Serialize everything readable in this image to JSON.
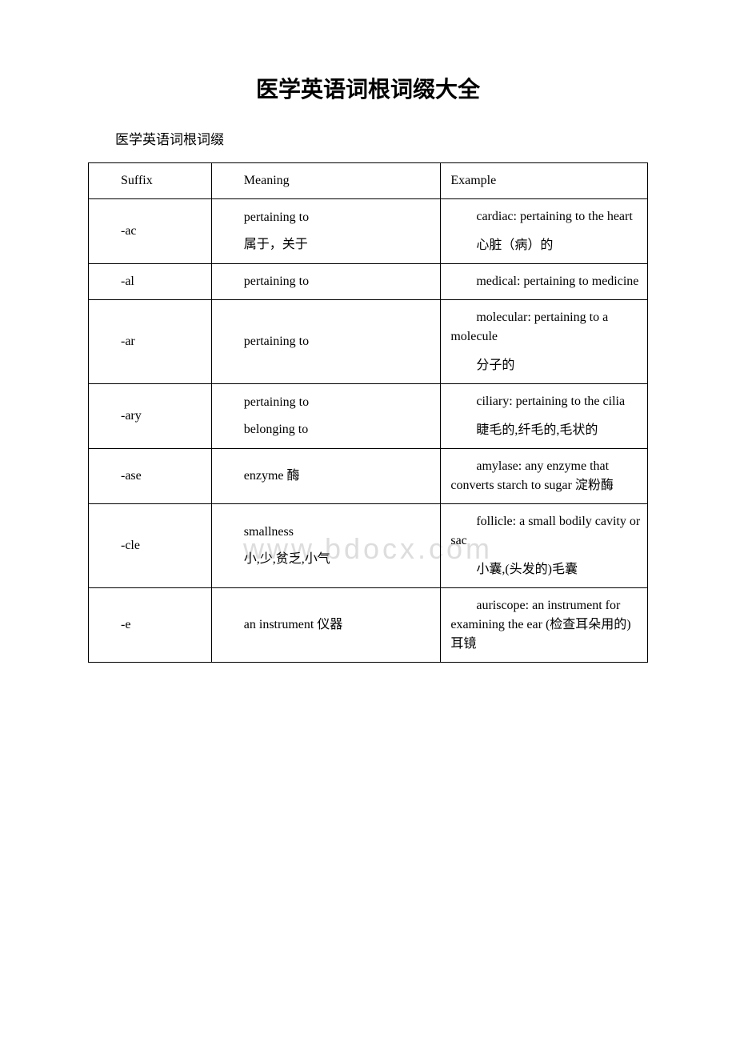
{
  "title": "医学英语词根词缀大全",
  "subtitle": "医学英语词根词缀",
  "watermark": "www.bdocx.com",
  "headers": {
    "suffix": "Suffix",
    "meaning": "Meaning",
    "example": "Example"
  },
  "rows": [
    {
      "suffix": "-ac",
      "meaning_lines": [
        "pertaining to",
        "属于，关于"
      ],
      "example_lines": [
        "cardiac: pertaining to the heart",
        "心脏（病）的"
      ]
    },
    {
      "suffix": "-al",
      "meaning_lines": [
        "pertaining to"
      ],
      "example_lines": [
        "medical: pertaining to medicine"
      ]
    },
    {
      "suffix": "-ar",
      "meaning_lines": [
        "pertaining to"
      ],
      "example_lines": [
        "molecular: pertaining to a molecule",
        "分子的"
      ]
    },
    {
      "suffix": "-ary",
      "meaning_lines": [
        "pertaining to",
        "belonging to"
      ],
      "example_lines": [
        "ciliary: pertaining to the cilia",
        "睫毛的,纤毛的,毛状的"
      ]
    },
    {
      "suffix": "-ase",
      "meaning_lines": [
        "enzyme 酶"
      ],
      "example_lines": [
        "amylase: any enzyme that converts starch to sugar 淀粉酶"
      ]
    },
    {
      "suffix": "-cle",
      "meaning_lines": [
        "smallness",
        "小,少,贫乏,小气"
      ],
      "example_lines": [
        "follicle: a small bodily cavity or sac",
        "小囊,(头发的)毛囊"
      ]
    },
    {
      "suffix": "-e",
      "meaning_lines": [
        "an instrument 仪器"
      ],
      "example_lines": [
        "auriscope: an instrument for examining the ear (检查耳朵用的)耳镜"
      ]
    }
  ],
  "colors": {
    "text": "#000000",
    "background": "#ffffff",
    "border": "#000000",
    "watermark": "#dddddd"
  }
}
